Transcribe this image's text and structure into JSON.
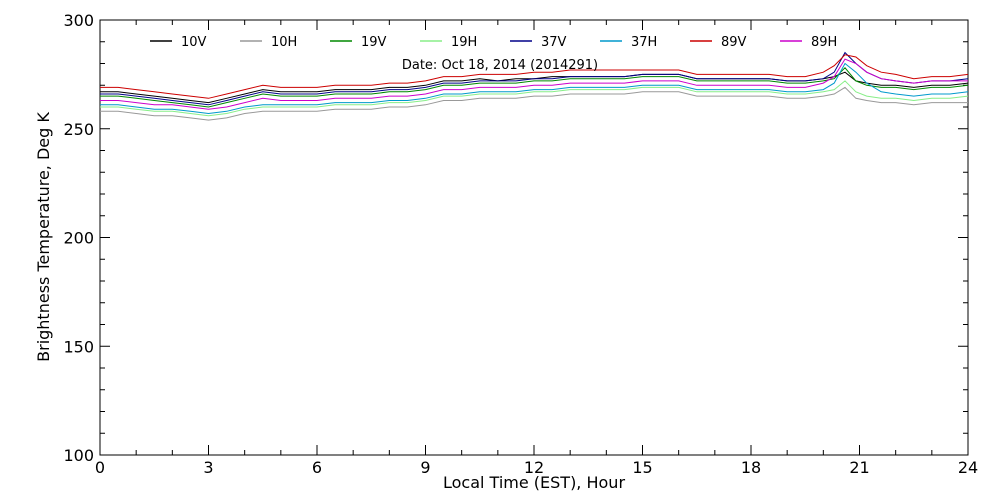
{
  "chart_data": {
    "type": "line",
    "annotation": "Date: Oct 18, 2014 (2014291)",
    "xlabel": "Local Time (EST), Hour",
    "ylabel": "Brightness Temperature, Deg K",
    "xlim": [
      0,
      24
    ],
    "ylim": [
      100,
      300
    ],
    "x_ticks": [
      0,
      3,
      6,
      9,
      12,
      15,
      18,
      21,
      24
    ],
    "y_ticks": [
      100,
      150,
      200,
      250,
      300
    ],
    "grid": false,
    "legend_position": "top",
    "x": [
      0,
      0.5,
      1,
      1.5,
      2,
      2.5,
      3,
      3.5,
      4,
      4.5,
      5,
      5.5,
      6,
      6.5,
      7,
      7.5,
      8,
      8.5,
      9,
      9.5,
      10,
      10.5,
      11,
      11.5,
      12,
      12.5,
      13,
      13.5,
      14,
      14.5,
      15,
      15.5,
      16,
      16.5,
      17,
      17.5,
      18,
      18.5,
      19,
      19.5,
      20,
      20.3,
      20.6,
      20.9,
      21.2,
      21.6,
      22,
      22.5,
      23,
      23.5,
      24
    ],
    "series": [
      {
        "name": "10V",
        "color": "#000000",
        "values": [
          267,
          267,
          266,
          265,
          264,
          263,
          262,
          264,
          266,
          268,
          267,
          267,
          267,
          268,
          268,
          268,
          269,
          269,
          270,
          272,
          272,
          273,
          272,
          273,
          273,
          274,
          274,
          274,
          274,
          274,
          275,
          275,
          275,
          273,
          273,
          273,
          273,
          273,
          272,
          272,
          273,
          274,
          276,
          272,
          271,
          270,
          270,
          269,
          270,
          270,
          271
        ]
      },
      {
        "name": "10H",
        "color": "#999999",
        "values": [
          258,
          258,
          257,
          256,
          256,
          255,
          254,
          255,
          257,
          258,
          258,
          258,
          258,
          259,
          259,
          259,
          260,
          260,
          261,
          263,
          263,
          264,
          264,
          264,
          265,
          265,
          266,
          266,
          266,
          266,
          267,
          267,
          267,
          265,
          265,
          265,
          265,
          265,
          264,
          264,
          265,
          266,
          269,
          264,
          263,
          262,
          262,
          261,
          262,
          262,
          262
        ]
      },
      {
        "name": "19V",
        "color": "#008800",
        "values": [
          265,
          265,
          264,
          263,
          262,
          261,
          260,
          262,
          264,
          266,
          265,
          265,
          265,
          266,
          266,
          266,
          267,
          267,
          268,
          270,
          270,
          271,
          271,
          271,
          272,
          272,
          273,
          273,
          273,
          273,
          274,
          274,
          274,
          272,
          272,
          272,
          272,
          272,
          271,
          271,
          272,
          273,
          278,
          272,
          270,
          269,
          269,
          268,
          269,
          269,
          270
        ]
      },
      {
        "name": "19H",
        "color": "#88ee88",
        "values": [
          260,
          260,
          259,
          258,
          258,
          257,
          256,
          257,
          259,
          260,
          260,
          260,
          260,
          261,
          261,
          261,
          262,
          262,
          263,
          265,
          265,
          266,
          266,
          266,
          267,
          267,
          268,
          268,
          268,
          268,
          269,
          269,
          269,
          267,
          267,
          267,
          267,
          267,
          266,
          266,
          267,
          268,
          272,
          267,
          265,
          264,
          264,
          263,
          264,
          264,
          265
        ]
      },
      {
        "name": "37V",
        "color": "#000088",
        "values": [
          266,
          266,
          265,
          264,
          263,
          262,
          261,
          263,
          265,
          267,
          266,
          266,
          266,
          267,
          267,
          267,
          268,
          268,
          269,
          271,
          271,
          272,
          272,
          272,
          273,
          273,
          274,
          274,
          274,
          274,
          275,
          275,
          275,
          273,
          273,
          273,
          273,
          273,
          272,
          272,
          273,
          276,
          285,
          280,
          276,
          273,
          272,
          271,
          272,
          272,
          273
        ]
      },
      {
        "name": "37H",
        "color": "#0099cc",
        "values": [
          261,
          261,
          260,
          259,
          259,
          258,
          257,
          258,
          260,
          261,
          261,
          261,
          261,
          262,
          262,
          262,
          263,
          263,
          264,
          266,
          266,
          267,
          267,
          267,
          268,
          268,
          269,
          269,
          269,
          269,
          270,
          270,
          270,
          268,
          268,
          268,
          268,
          268,
          267,
          267,
          268,
          271,
          280,
          276,
          271,
          267,
          266,
          265,
          266,
          266,
          267
        ]
      },
      {
        "name": "89V",
        "color": "#cc0000",
        "values": [
          269,
          269,
          268,
          267,
          266,
          265,
          264,
          266,
          268,
          270,
          269,
          269,
          269,
          270,
          270,
          270,
          271,
          271,
          272,
          274,
          274,
          275,
          275,
          275,
          276,
          276,
          277,
          277,
          277,
          277,
          277,
          277,
          277,
          275,
          275,
          275,
          275,
          275,
          274,
          274,
          276,
          279,
          284,
          283,
          279,
          276,
          275,
          273,
          274,
          274,
          275
        ]
      },
      {
        "name": "89H",
        "color": "#cc00cc",
        "values": [
          263,
          263,
          262,
          261,
          261,
          260,
          259,
          260,
          262,
          264,
          263,
          263,
          263,
          264,
          264,
          264,
          265,
          265,
          266,
          268,
          268,
          269,
          269,
          269,
          270,
          270,
          271,
          271,
          271,
          271,
          272,
          272,
          272,
          270,
          270,
          270,
          270,
          270,
          269,
          269,
          271,
          274,
          282,
          280,
          276,
          273,
          272,
          271,
          272,
          272,
          272
        ]
      }
    ]
  }
}
